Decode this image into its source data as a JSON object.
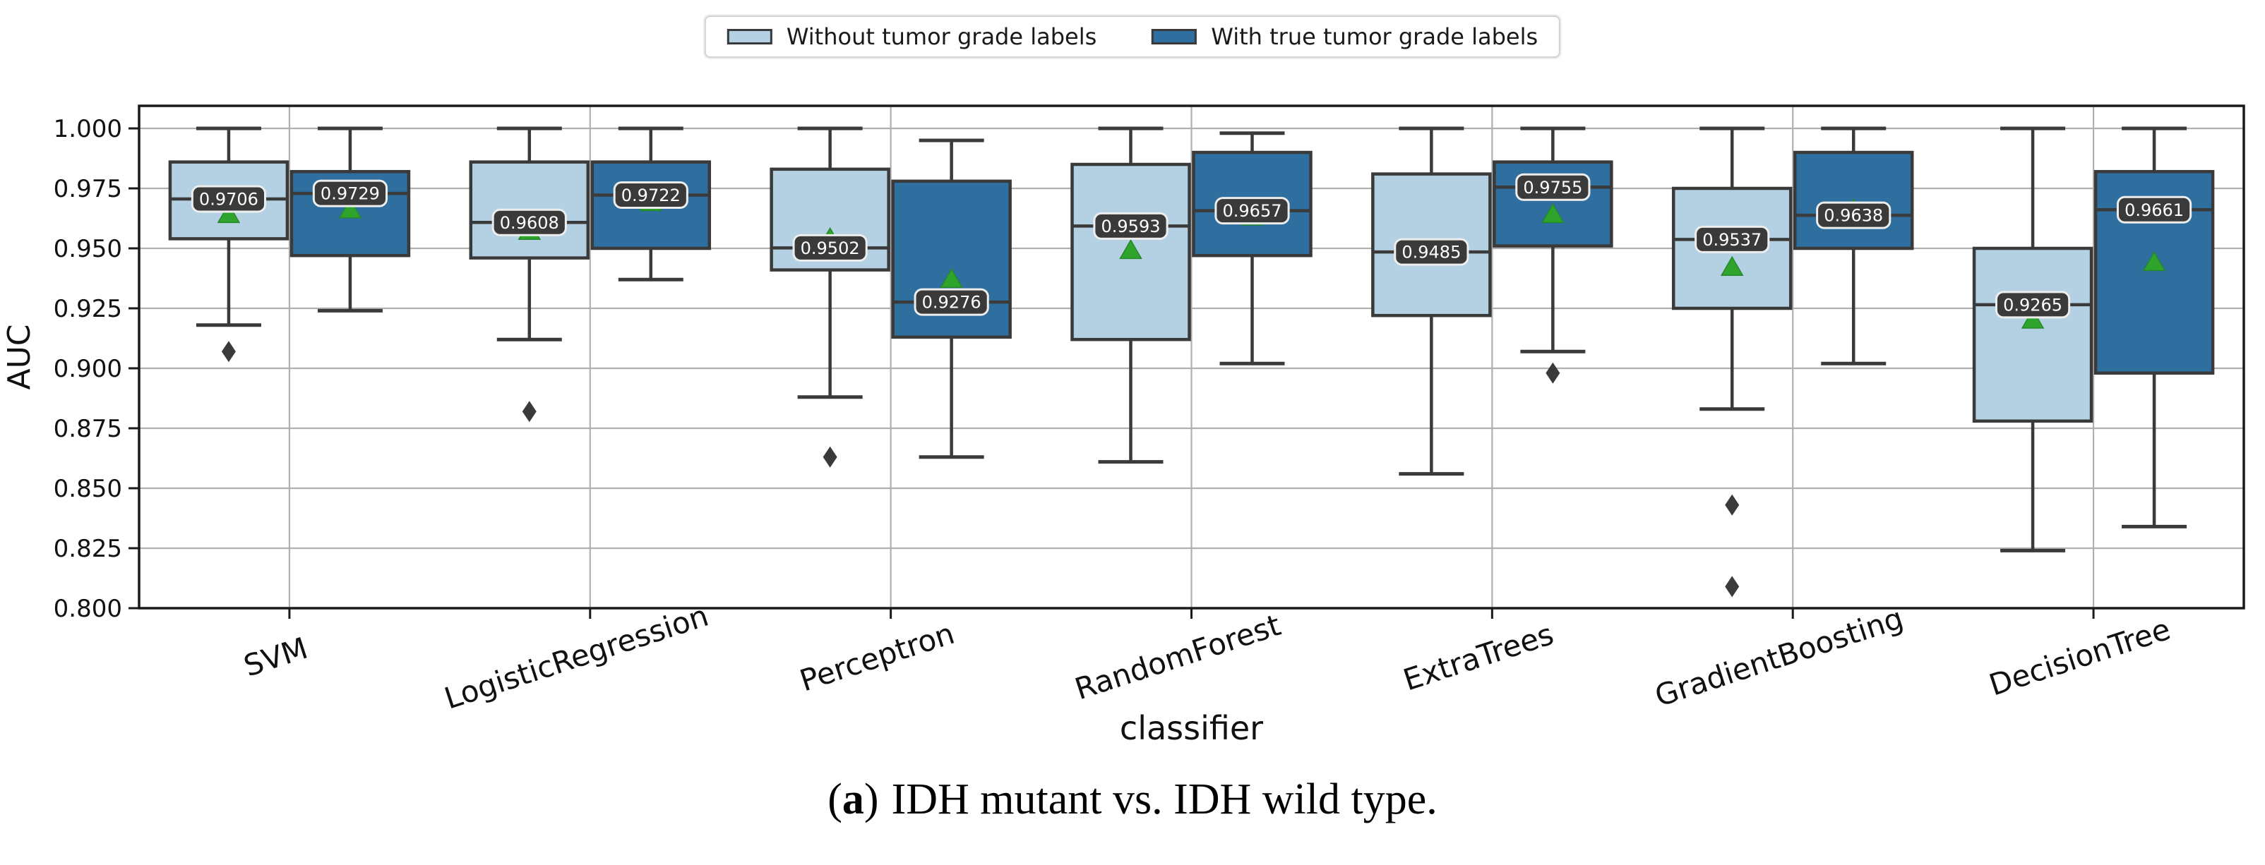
{
  "legend": {
    "items": [
      {
        "label": "Without tumor grade labels",
        "color": "#b4d1e3"
      },
      {
        "label": "With true tumor grade labels",
        "color": "#2e6f9f"
      }
    ]
  },
  "caption": {
    "open": "(",
    "letter": "a",
    "close": ")",
    "text": "IDH mutant vs. IDH wild type."
  },
  "chart_data": {
    "type": "grouped_boxplot",
    "title": "",
    "xlabel": "classifier",
    "ylabel": "AUC",
    "ylim": [
      0.8,
      1.0094
    ],
    "ytick_values": [
      1.0,
      0.975,
      0.95,
      0.925,
      0.9,
      0.875,
      0.85,
      0.825,
      0.8
    ],
    "ytick_labels": [
      "1.000",
      "0.975",
      "0.950",
      "0.925",
      "0.900",
      "0.875",
      "0.850",
      "0.825",
      "0.800"
    ],
    "grid": true,
    "legend_position": "top-center",
    "categories": [
      "SVM",
      "LogisticRegression",
      "Perceptron",
      "RandomForest",
      "ExtraTrees",
      "GradientBoosting",
      "DecisionTree"
    ],
    "colors": {
      "box_without": "#b4d1e3",
      "box_with": "#2e6f9f",
      "box_edge": "#3a3a3a",
      "mean_marker": "#2ea42d",
      "mean_marker_edge": "#27882a",
      "outlier": "#3a3a3a",
      "grid": "#b0b0b0",
      "spine": "#1a1a1a",
      "median_label_bg": "#3a3a3a",
      "median_label_text": "#ffffff",
      "median_label_outline": "#ededed"
    },
    "series": [
      {
        "name": "Without tumor grade labels",
        "color": "#b4d1e3",
        "boxes": [
          {
            "whisker_low": 0.918,
            "q1": 0.954,
            "median": 0.9706,
            "q3": 0.986,
            "whisker_high": 1.0,
            "mean": 0.964,
            "outliers": [
              0.907
            ],
            "median_label": "0.9706"
          },
          {
            "whisker_low": 0.912,
            "q1": 0.946,
            "median": 0.9608,
            "q3": 0.986,
            "whisker_high": 1.0,
            "mean": 0.957,
            "outliers": [
              0.882
            ],
            "median_label": "0.9608"
          },
          {
            "whisker_low": 0.888,
            "q1": 0.941,
            "median": 0.9502,
            "q3": 0.983,
            "whisker_high": 1.0,
            "mean": 0.954,
            "outliers": [
              0.863
            ],
            "median_label": "0.9502"
          },
          {
            "whisker_low": 0.861,
            "q1": 0.912,
            "median": 0.9593,
            "q3": 0.985,
            "whisker_high": 1.0,
            "mean": 0.949,
            "outliers": [],
            "median_label": "0.9593"
          },
          {
            "whisker_low": 0.856,
            "q1": 0.922,
            "median": 0.9485,
            "q3": 0.981,
            "whisker_high": 1.0,
            "mean": 0.947,
            "outliers": [],
            "median_label": "0.9485"
          },
          {
            "whisker_low": 0.883,
            "q1": 0.925,
            "median": 0.9537,
            "q3": 0.975,
            "whisker_high": 1.0,
            "mean": 0.942,
            "outliers": [
              0.843,
              0.809
            ],
            "median_label": "0.9537"
          },
          {
            "whisker_low": 0.824,
            "q1": 0.878,
            "median": 0.9265,
            "q3": 0.95,
            "whisker_high": 1.0,
            "mean": 0.92,
            "outliers": [],
            "median_label": "0.9265"
          }
        ]
      },
      {
        "name": "With true tumor grade labels",
        "color": "#2e6f9f",
        "boxes": [
          {
            "whisker_low": 0.924,
            "q1": 0.947,
            "median": 0.9729,
            "q3": 0.982,
            "whisker_high": 1.0,
            "mean": 0.966,
            "outliers": [],
            "median_label": "0.9729"
          },
          {
            "whisker_low": 0.937,
            "q1": 0.95,
            "median": 0.9722,
            "q3": 0.986,
            "whisker_high": 1.0,
            "mean": 0.969,
            "outliers": [],
            "median_label": "0.9722"
          },
          {
            "whisker_low": 0.863,
            "q1": 0.913,
            "median": 0.9276,
            "q3": 0.978,
            "whisker_high": 0.995,
            "mean": 0.937,
            "outliers": [],
            "median_label": "0.9276"
          },
          {
            "whisker_low": 0.902,
            "q1": 0.947,
            "median": 0.9657,
            "q3": 0.99,
            "whisker_high": 0.998,
            "mean": 0.963,
            "outliers": [],
            "median_label": "0.9657"
          },
          {
            "whisker_low": 0.907,
            "q1": 0.951,
            "median": 0.9755,
            "q3": 0.986,
            "whisker_high": 1.0,
            "mean": 0.964,
            "outliers": [
              0.898
            ],
            "median_label": "0.9755"
          },
          {
            "whisker_low": 0.902,
            "q1": 0.95,
            "median": 0.9638,
            "q3": 0.99,
            "whisker_high": 1.0,
            "mean": 0.966,
            "outliers": [],
            "median_label": "0.9638"
          },
          {
            "whisker_low": 0.834,
            "q1": 0.898,
            "median": 0.9661,
            "q3": 0.982,
            "whisker_high": 1.0,
            "mean": 0.944,
            "outliers": [],
            "median_label": "0.9661"
          }
        ]
      }
    ]
  }
}
